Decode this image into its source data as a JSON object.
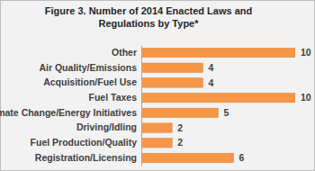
{
  "chart_data": {
    "type": "bar",
    "orientation": "horizontal",
    "title": "Figure 3. Number of 2014 Enacted Laws and Regulations by Type*",
    "categories": [
      "Other",
      "Air Quality/Emissions",
      "Acquisition/Fuel Use",
      "Fuel Taxes",
      "Climate Change/Energy Initiatives",
      "Driving/Idling",
      "Fuel Production/Quality",
      "Registration/Licensing"
    ],
    "values": [
      10,
      4,
      4,
      10,
      5,
      2,
      2,
      6
    ],
    "color": "#f79646",
    "xlim": [
      0,
      10
    ],
    "data_labels": true,
    "tick_labels": "y",
    "grid": false
  }
}
